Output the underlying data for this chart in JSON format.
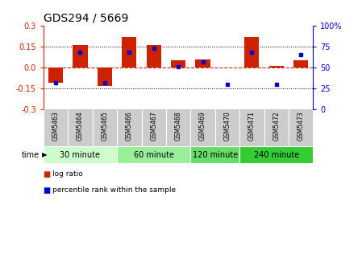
{
  "title": "GDS294 / 5669",
  "samples": [
    "GSM5463",
    "GSM5464",
    "GSM5465",
    "GSM5466",
    "GSM5467",
    "GSM5468",
    "GSM5469",
    "GSM5470",
    "GSM5471",
    "GSM5472",
    "GSM5473"
  ],
  "log_ratio": [
    -0.11,
    0.16,
    -0.13,
    0.22,
    0.16,
    0.05,
    0.06,
    0.0,
    0.22,
    0.01,
    0.05
  ],
  "percentile": [
    32,
    68,
    32,
    68,
    73,
    51,
    57,
    30,
    68,
    30,
    65
  ],
  "groups": [
    {
      "label": "30 minute",
      "start": 0,
      "end": 3,
      "color": "#ccffcc"
    },
    {
      "label": "60 minute",
      "start": 3,
      "end": 6,
      "color": "#99ee99"
    },
    {
      "label": "120 minute",
      "start": 6,
      "end": 8,
      "color": "#66dd66"
    },
    {
      "label": "240 minute",
      "start": 8,
      "end": 11,
      "color": "#33cc33"
    }
  ],
  "bar_color": "#cc2200",
  "dot_color": "#0000cc",
  "ylim_left": [
    -0.3,
    0.3
  ],
  "ylim_right": [
    0,
    100
  ],
  "yticks_left": [
    -0.3,
    -0.15,
    0.0,
    0.15,
    0.3
  ],
  "yticks_right": [
    0,
    25,
    50,
    75,
    100
  ],
  "hlines_dotted": [
    -0.15,
    0.15
  ],
  "hline_zero": 0.0,
  "bg_color": "#ffffff",
  "label_log": "log ratio",
  "label_pct": "percentile rank within the sample",
  "sample_bg": "#cccccc",
  "bar_width": 0.6
}
